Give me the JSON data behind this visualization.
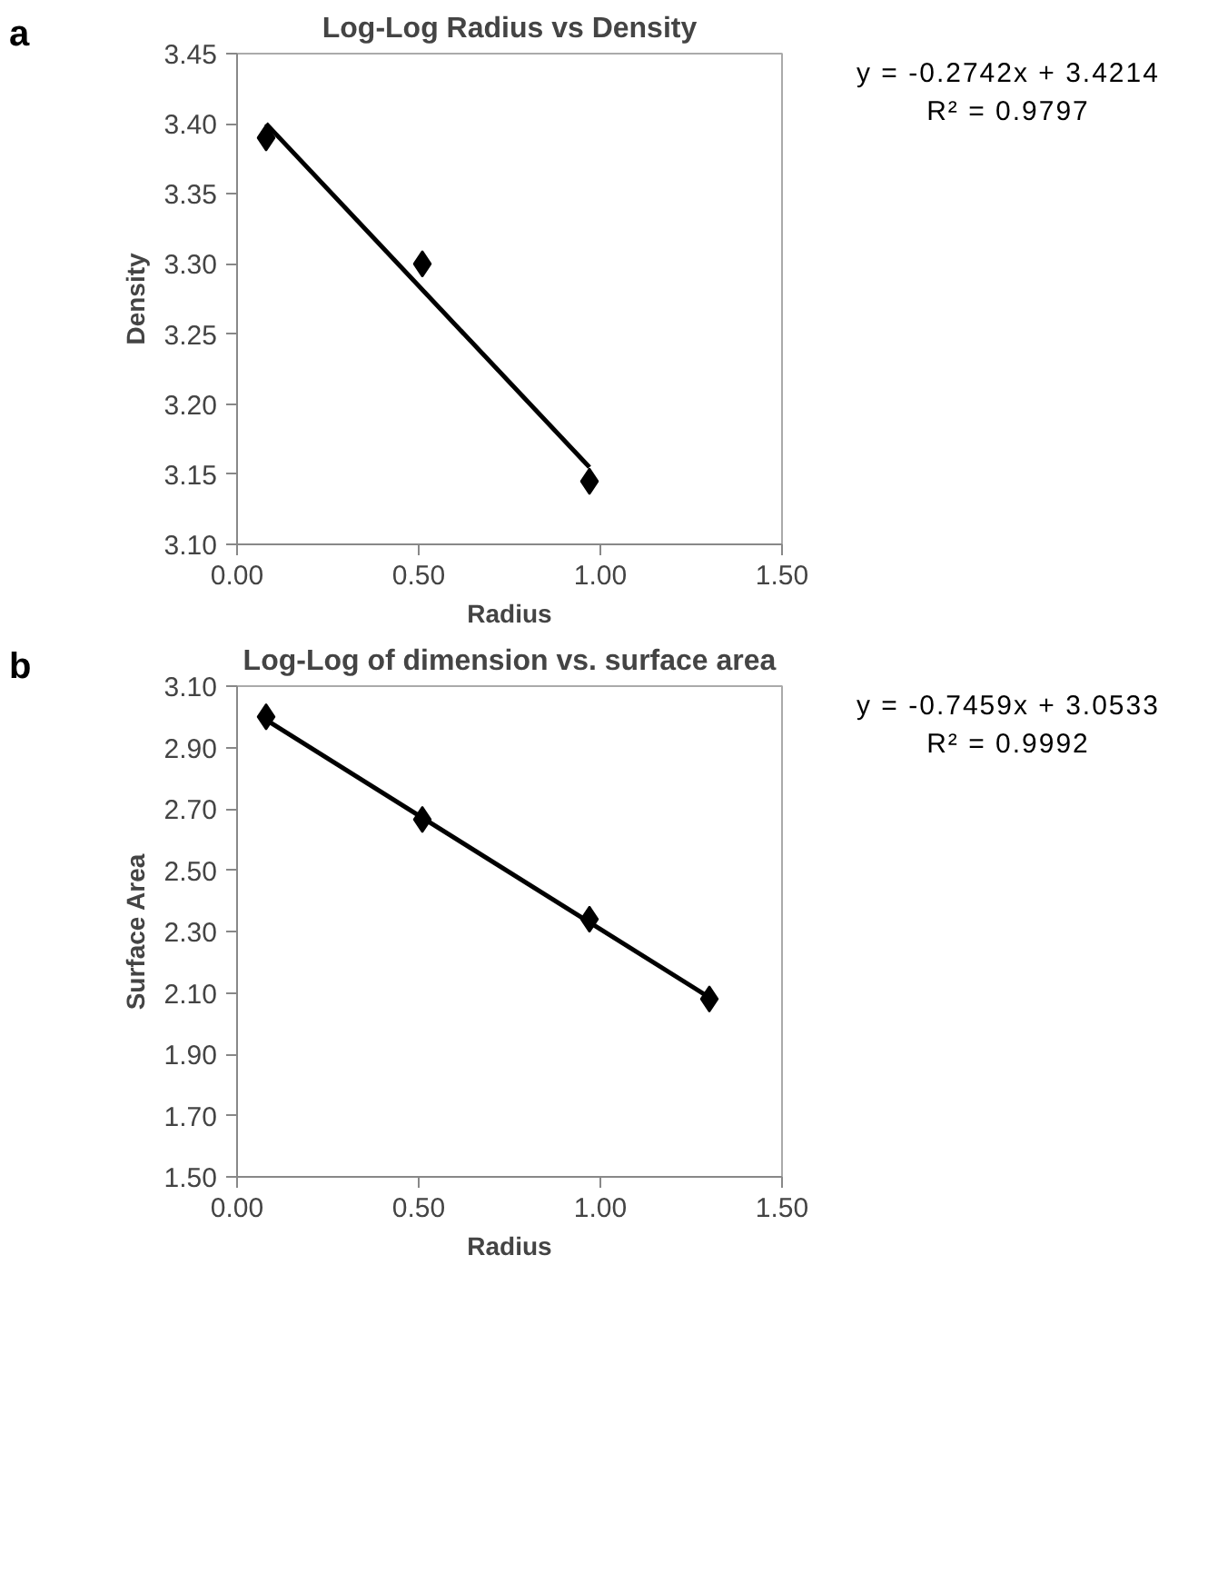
{
  "chart_data": [
    {
      "type": "scatter",
      "title": "Log-Log Radius vs Density",
      "xlabel": "Radius",
      "ylabel": "Density",
      "annotations": [
        "a",
        "y = -0.2742x + 3.4214",
        "R² = 0.9797"
      ],
      "xlim": [
        0,
        1.5
      ],
      "xticks": [
        {
          "value": 0,
          "label": "0.00"
        },
        {
          "value": 0.5,
          "label": "0.50"
        },
        {
          "value": 1,
          "label": "1.00"
        },
        {
          "value": 1.5,
          "label": "1.50"
        }
      ],
      "ylim": [
        3.1,
        3.45
      ],
      "yticks": [
        {
          "value": 3.1,
          "label": "3.10"
        },
        {
          "value": 3.15,
          "label": "3.15"
        },
        {
          "value": 3.2,
          "label": "3.20"
        },
        {
          "value": 3.25,
          "label": "3.25"
        },
        {
          "value": 3.3,
          "label": "3.30"
        },
        {
          "value": 3.35,
          "label": "3.35"
        },
        {
          "value": 3.4,
          "label": "3.40"
        },
        {
          "value": 3.45,
          "label": "3.45"
        }
      ],
      "grid": false,
      "series": [
        {
          "color": "#000000",
          "marker": "diamond",
          "x": [
            0.08,
            0.51,
            0.97
          ],
          "values": [
            3.39,
            3.3,
            3.145
          ]
        },
        {
          "type": "line",
          "color": "#000000",
          "x": [
            0.08,
            0.97
          ],
          "values": [
            3.4,
            3.155
          ]
        }
      ]
    },
    {
      "type": "scatter",
      "title": "Log-Log of dimension vs. surface area",
      "xlabel": "Radius",
      "ylabel": "Surface Area",
      "annotations": [
        "b",
        "y = -0.7459x + 3.0533",
        "R² = 0.9992"
      ],
      "xlim": [
        0,
        1.5
      ],
      "xticks": [
        {
          "value": 0,
          "label": "0.00"
        },
        {
          "value": 0.5,
          "label": "0.50"
        },
        {
          "value": 1,
          "label": "1.00"
        },
        {
          "value": 1.5,
          "label": "1.50"
        }
      ],
      "ylim": [
        1.5,
        3.1
      ],
      "yticks": [
        {
          "value": 1.5,
          "label": "1.50"
        },
        {
          "value": 1.7,
          "label": "1.70"
        },
        {
          "value": 1.9,
          "label": "1.90"
        },
        {
          "value": 2.1,
          "label": "2.10"
        },
        {
          "value": 2.3,
          "label": "2.30"
        },
        {
          "value": 2.5,
          "label": "2.50"
        },
        {
          "value": 2.7,
          "label": "2.70"
        },
        {
          "value": 2.9,
          "label": "2.90"
        },
        {
          "value": 3.1,
          "label": "3.10"
        }
      ],
      "grid": false,
      "series": [
        {
          "color": "#000000",
          "marker": "diamond",
          "x": [
            0.08,
            0.51,
            0.97,
            1.3
          ],
          "values": [
            3.0,
            2.665,
            2.34,
            2.08
          ]
        },
        {
          "type": "line",
          "color": "#000000",
          "x": [
            0.08,
            1.3
          ],
          "values": [
            2.99,
            2.085
          ]
        }
      ]
    }
  ]
}
